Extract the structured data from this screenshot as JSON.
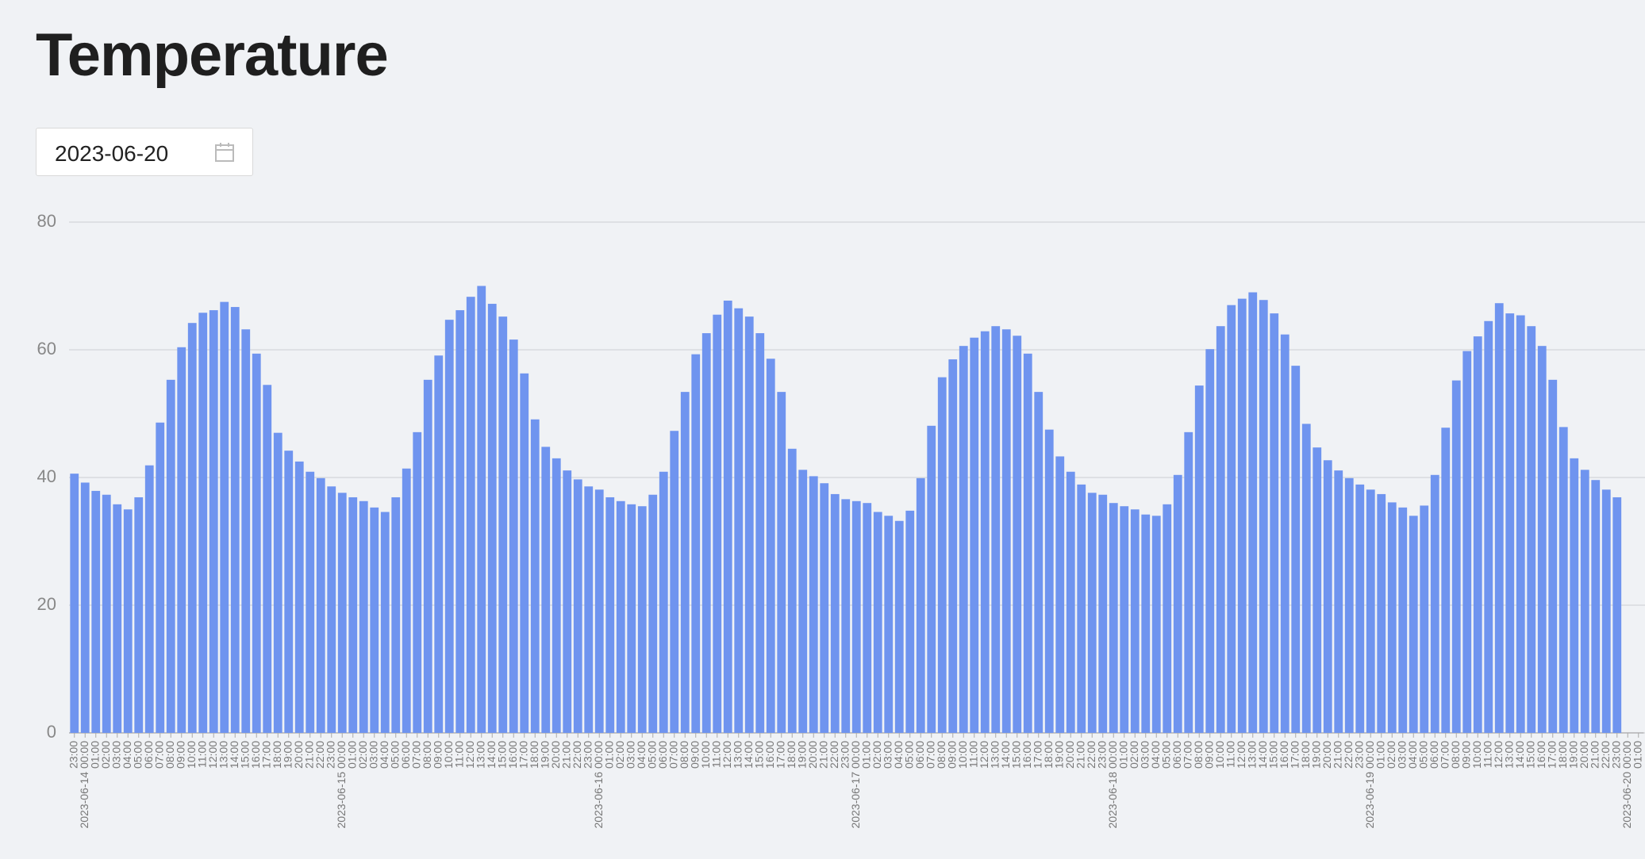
{
  "title": "Temperature",
  "date_picker": {
    "value": "2023-06-20"
  },
  "chart_data": {
    "type": "bar",
    "color": "#6f94ef",
    "categories": [
      "23:00",
      "2023-06-14 00:00",
      "01:00",
      "02:00",
      "03:00",
      "04:00",
      "05:00",
      "06:00",
      "07:00",
      "08:00",
      "09:00",
      "10:00",
      "11:00",
      "12:00",
      "13:00",
      "14:00",
      "15:00",
      "16:00",
      "17:00",
      "18:00",
      "19:00",
      "20:00",
      "21:00",
      "22:00",
      "23:00",
      "2023-06-15 00:00",
      "01:00",
      "02:00",
      "03:00",
      "04:00",
      "05:00",
      "06:00",
      "07:00",
      "08:00",
      "09:00",
      "10:00",
      "11:00",
      "12:00",
      "13:00",
      "14:00",
      "15:00",
      "16:00",
      "17:00",
      "18:00",
      "19:00",
      "20:00",
      "21:00",
      "22:00",
      "23:00",
      "2023-06-16 00:00",
      "01:00",
      "02:00",
      "03:00",
      "04:00",
      "05:00",
      "06:00",
      "07:00",
      "08:00",
      "09:00",
      "10:00",
      "11:00",
      "12:00",
      "13:00",
      "14:00",
      "15:00",
      "16:00",
      "17:00",
      "18:00",
      "19:00",
      "20:00",
      "21:00",
      "22:00",
      "23:00",
      "2023-06-17 00:00",
      "01:00",
      "02:00",
      "03:00",
      "04:00",
      "05:00",
      "06:00",
      "07:00",
      "08:00",
      "09:00",
      "10:00",
      "11:00",
      "12:00",
      "13:00",
      "14:00",
      "15:00",
      "16:00",
      "17:00",
      "18:00",
      "19:00",
      "20:00",
      "21:00",
      "22:00",
      "23:00",
      "2023-06-18 00:00",
      "01:00",
      "02:00",
      "03:00",
      "04:00",
      "05:00",
      "06:00",
      "07:00",
      "08:00",
      "09:00",
      "10:00",
      "11:00",
      "12:00",
      "13:00",
      "14:00",
      "15:00",
      "16:00",
      "17:00",
      "18:00",
      "19:00",
      "20:00",
      "21:00",
      "22:00",
      "23:00",
      "2023-06-19 00:00",
      "01:00",
      "02:00",
      "03:00",
      "04:00",
      "05:00",
      "06:00",
      "07:00",
      "08:00",
      "09:00",
      "10:00",
      "11:00",
      "12:00",
      "13:00",
      "14:00",
      "15:00",
      "16:00",
      "17:00",
      "18:00",
      "19:00",
      "20:00",
      "21:00",
      "22:00",
      "23:00",
      "2023-06-20 00:00",
      "01:00"
    ],
    "values": [
      40.6,
      39.2,
      37.9,
      37.3,
      35.8,
      35.0,
      36.9,
      41.9,
      48.6,
      55.3,
      60.4,
      64.2,
      65.8,
      66.2,
      67.5,
      66.7,
      63.2,
      59.4,
      54.5,
      47.0,
      44.2,
      42.5,
      40.9,
      39.9,
      38.6,
      37.6,
      36.9,
      36.3,
      35.3,
      34.6,
      36.9,
      41.4,
      47.1,
      55.3,
      59.1,
      64.7,
      66.2,
      68.3,
      70.0,
      67.2,
      65.2,
      61.6,
      56.3,
      49.1,
      44.8,
      43.0,
      41.1,
      39.7,
      38.6,
      38.1,
      36.9,
      36.3,
      35.8,
      35.5,
      37.3,
      40.9,
      47.3,
      53.4,
      59.3,
      62.6,
      65.5,
      67.7,
      66.5,
      65.2,
      62.6,
      58.6,
      53.4,
      44.5,
      41.2,
      40.2,
      39.1,
      37.4,
      36.6,
      36.3,
      36.0,
      34.6,
      34.0,
      33.2,
      34.8,
      39.9,
      48.1,
      55.7,
      58.5,
      60.6,
      61.9,
      62.9,
      63.7,
      63.2,
      62.2,
      59.4,
      53.4,
      47.5,
      43.3,
      40.9,
      38.9,
      37.6,
      37.3,
      36.0,
      35.5,
      35.0,
      34.2,
      34.0,
      35.8,
      40.4,
      47.1,
      54.4,
      60.1,
      63.7,
      67.0,
      68.0,
      69.0,
      67.8,
      65.7,
      62.4,
      57.5,
      48.4,
      44.7,
      42.7,
      41.1,
      39.9,
      38.9,
      38.1,
      37.4,
      36.1,
      35.3,
      34.0,
      35.6,
      40.4,
      47.8,
      55.2,
      59.8,
      62.1,
      64.5,
      67.3,
      65.7,
      65.4,
      63.7,
      60.6,
      55.3,
      47.9,
      43.0,
      41.2,
      39.6,
      38.1,
      36.9,
      null,
      null
    ],
    "ylim": [
      0,
      80
    ],
    "yticks": [
      0,
      20,
      40,
      60,
      80
    ],
    "grid": true
  }
}
